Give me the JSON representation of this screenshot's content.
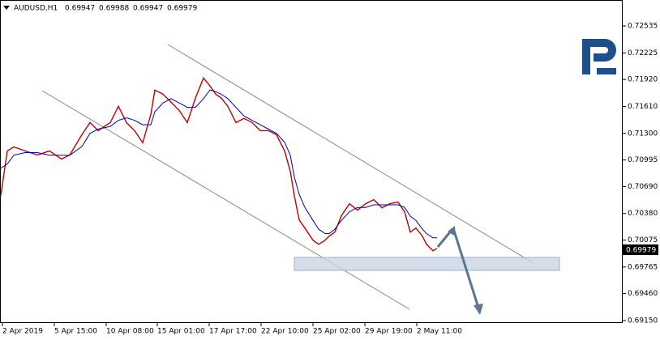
{
  "chart_data": {
    "type": "line",
    "title": "AUDUSD,H1",
    "ohlc": [
      0.69947,
      0.69988,
      0.69947,
      0.69979
    ],
    "x": [
      0,
      8,
      16,
      30,
      45,
      60,
      75,
      85,
      100,
      110,
      120,
      135,
      145,
      155,
      165,
      175,
      185,
      190,
      200,
      210,
      220,
      230,
      240,
      250,
      258,
      265,
      272,
      280,
      290,
      300,
      310,
      320,
      330,
      340,
      350,
      357,
      362,
      368,
      375,
      385,
      392,
      400,
      405,
      412,
      420,
      430,
      440,
      450,
      460,
      470,
      480,
      490,
      498,
      505,
      512,
      520,
      525,
      533,
      538
    ],
    "series": [
      {
        "color": "#c00000",
        "values": [
          0.70586,
          0.71099,
          0.71145,
          0.71099,
          0.71052,
          0.71099,
          0.71006,
          0.71052,
          0.71285,
          0.71425,
          0.71332,
          0.71425,
          0.71612,
          0.71425,
          0.71332,
          0.71192,
          0.71518,
          0.71798,
          0.71752,
          0.71658,
          0.71565,
          0.71425,
          0.71705,
          0.71938,
          0.71845,
          0.71752,
          0.71705,
          0.71612,
          0.71425,
          0.71472,
          0.71425,
          0.71332,
          0.71332,
          0.71285,
          0.71099,
          0.70866,
          0.70586,
          0.70306,
          0.70213,
          0.70073,
          0.70026,
          0.70073,
          0.7012,
          0.70166,
          0.70353,
          0.70493,
          0.70418,
          0.70493,
          0.70539,
          0.70446,
          0.70493,
          0.70511,
          0.70399,
          0.70166,
          0.70213,
          0.7012,
          0.70026,
          0.69952,
          0.69979
        ]
      },
      {
        "color": "#0000b0",
        "values": [
          0.709,
          0.7095,
          0.7105,
          0.7108,
          0.7108,
          0.7105,
          0.7105,
          0.7105,
          0.7115,
          0.713,
          0.7135,
          0.7138,
          0.7145,
          0.7148,
          0.7145,
          0.714,
          0.714,
          0.7155,
          0.7165,
          0.717,
          0.7165,
          0.716,
          0.716,
          0.717,
          0.718,
          0.7178,
          0.7175,
          0.717,
          0.716,
          0.715,
          0.7145,
          0.714,
          0.7135,
          0.713,
          0.712,
          0.7105,
          0.708,
          0.706,
          0.7045,
          0.703,
          0.702,
          0.7015,
          0.7015,
          0.702,
          0.703,
          0.704,
          0.7045,
          0.7045,
          0.7048,
          0.7048,
          0.7048,
          0.7048,
          0.7045,
          0.7035,
          0.703,
          0.702,
          0.7015,
          0.701,
          0.701
        ]
      }
    ],
    "xlim": [
      0,
      766
    ],
    "xticks": [
      {
        "value": 2,
        "label": "2 Apr 2019"
      },
      {
        "value": 66,
        "label": "5 Apr 15:00"
      },
      {
        "value": 130,
        "label": "10 Apr 08:00"
      },
      {
        "value": 193,
        "label": "15 Apr 01:00"
      },
      {
        "value": 257,
        "label": "17 Apr 17:00"
      },
      {
        "value": 321,
        "label": "22 Apr 10:00"
      },
      {
        "value": 385,
        "label": "25 Apr 02:00"
      },
      {
        "value": 449,
        "label": "29 Apr 19:00"
      },
      {
        "value": 513,
        "label": "2 May 11:00"
      }
    ],
    "ylim": [
      0.69131,
      0.72824
    ],
    "yticks": [
      0.72535,
      0.72225,
      {
        "value": 0.7192,
        "label": "0.71920"
      },
      {
        "value": 0.7161,
        "label": "0.71610"
      },
      {
        "value": 0.713,
        "label": "0.71300"
      },
      0.70995,
      {
        "value": 0.7069,
        "label": "0.70690"
      },
      {
        "value": 0.7038,
        "label": "0.70380"
      },
      0.70075,
      0.69765,
      {
        "value": 0.6946,
        "label": "0.69460"
      },
      {
        "value": 0.6915,
        "label": "0.69150"
      }
    ],
    "grid": false
  }
}
